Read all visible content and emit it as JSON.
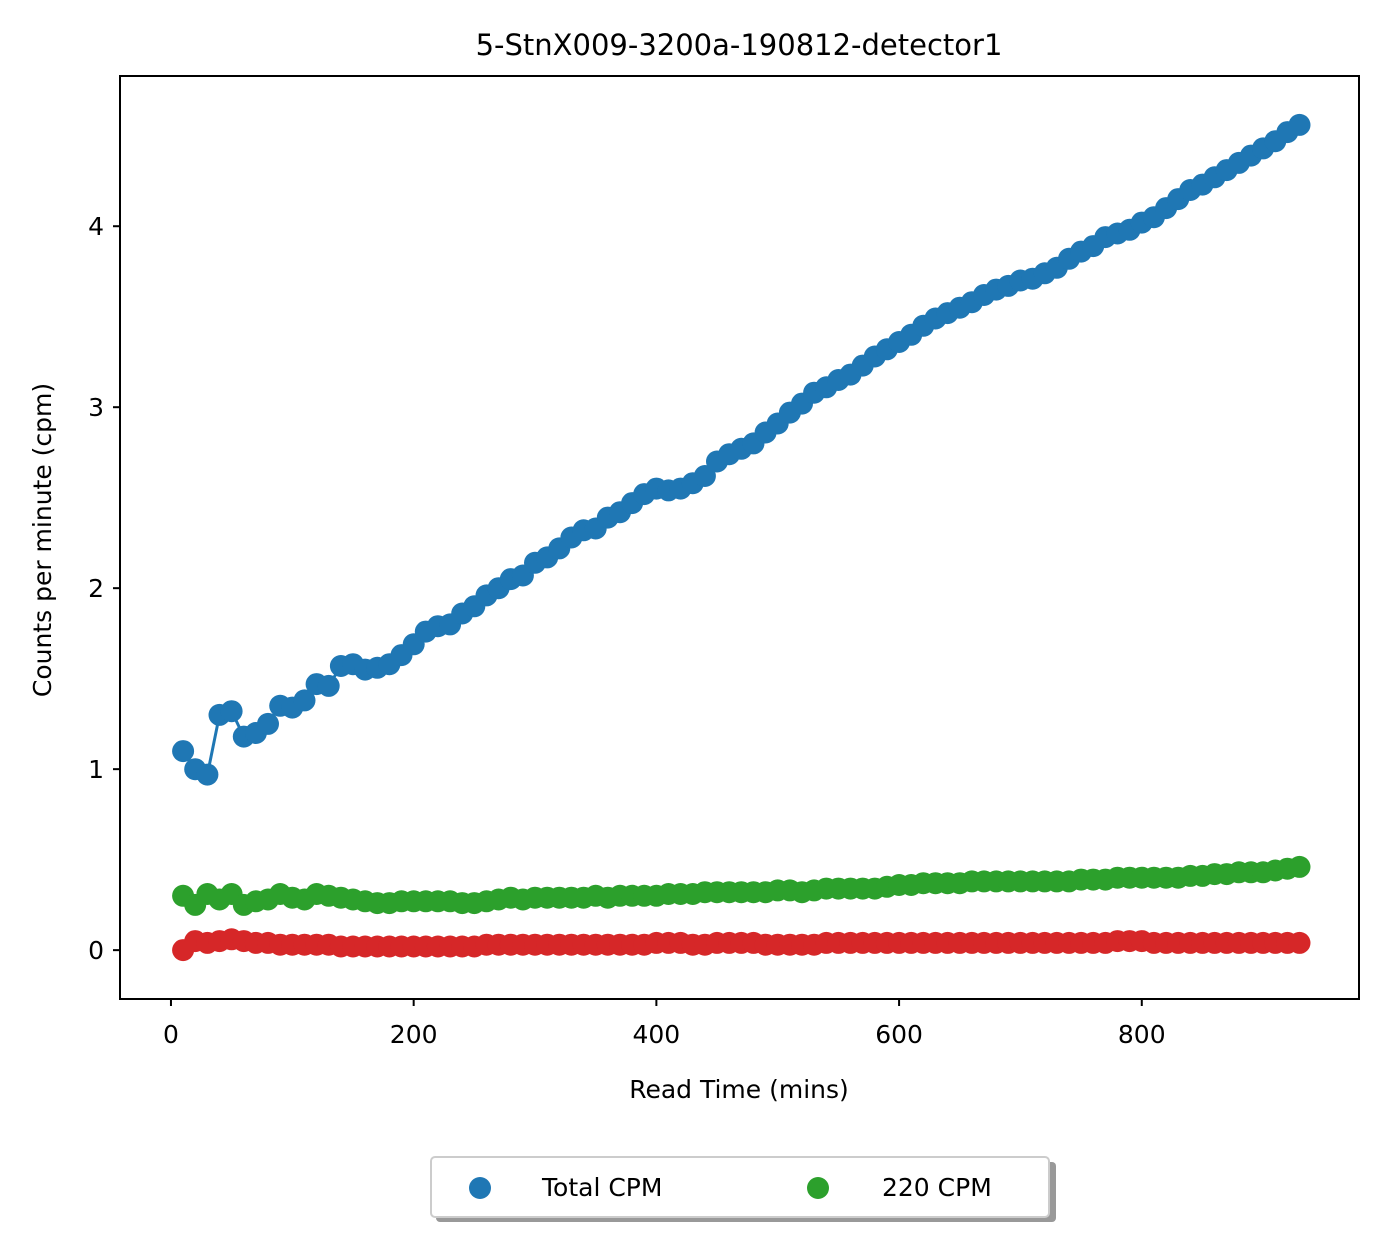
{
  "chart_data": {
    "type": "line",
    "title": "5-StnX009-3200a-190812-detector1",
    "xlabel": "Read Time (mins)",
    "ylabel": "Counts per minute (cpm)",
    "xlim": [
      -42,
      979
    ],
    "ylim": [
      -0.27,
      4.83
    ],
    "xticks": [
      0,
      200,
      400,
      600,
      800
    ],
    "yticks": [
      0,
      1,
      2,
      3,
      4
    ],
    "grid": false,
    "legend": {
      "placement": "bottom-center, below plot",
      "entries": [
        "Total CPM",
        "220 CPM"
      ]
    },
    "x": [
      10,
      20,
      30,
      40,
      50,
      60,
      70,
      80,
      90,
      100,
      110,
      120,
      130,
      140,
      150,
      160,
      170,
      180,
      190,
      200,
      210,
      220,
      230,
      240,
      250,
      260,
      270,
      280,
      290,
      300,
      310,
      320,
      330,
      340,
      350,
      360,
      370,
      380,
      390,
      400,
      410,
      420,
      430,
      440,
      450,
      460,
      470,
      480,
      490,
      500,
      510,
      520,
      530,
      540,
      550,
      560,
      570,
      580,
      590,
      600,
      610,
      620,
      630,
      640,
      650,
      660,
      670,
      680,
      690,
      700,
      710,
      720,
      730,
      740,
      750,
      760,
      770,
      780,
      790,
      800,
      810,
      820,
      830,
      840,
      850,
      860,
      870,
      880,
      890,
      900,
      910,
      920,
      930
    ],
    "series": [
      {
        "name": "Total CPM",
        "color": "#1f77b4",
        "style": "line-with-markers",
        "values": [
          1.1,
          1.0,
          0.97,
          1.3,
          1.32,
          1.18,
          1.2,
          1.25,
          1.35,
          1.34,
          1.38,
          1.47,
          1.46,
          1.57,
          1.58,
          1.55,
          1.56,
          1.58,
          1.63,
          1.69,
          1.76,
          1.79,
          1.8,
          1.86,
          1.9,
          1.96,
          2.0,
          2.05,
          2.07,
          2.14,
          2.17,
          2.22,
          2.28,
          2.32,
          2.33,
          2.39,
          2.42,
          2.47,
          2.52,
          2.55,
          2.54,
          2.55,
          2.58,
          2.62,
          2.7,
          2.74,
          2.77,
          2.8,
          2.86,
          2.91,
          2.97,
          3.02,
          3.08,
          3.11,
          3.15,
          3.18,
          3.23,
          3.28,
          3.32,
          3.36,
          3.4,
          3.45,
          3.49,
          3.52,
          3.55,
          3.58,
          3.62,
          3.65,
          3.67,
          3.7,
          3.71,
          3.74,
          3.77,
          3.82,
          3.86,
          3.89,
          3.94,
          3.96,
          3.98,
          4.02,
          4.05,
          4.1,
          4.15,
          4.2,
          4.23,
          4.27,
          4.31,
          4.35,
          4.39,
          4.43,
          4.47,
          4.52,
          4.56
        ]
      },
      {
        "name": "220 CPM",
        "color": "#2ca02c",
        "style": "line-with-markers",
        "values": [
          0.3,
          0.25,
          0.31,
          0.28,
          0.31,
          0.25,
          0.27,
          0.28,
          0.31,
          0.29,
          0.28,
          0.31,
          0.3,
          0.29,
          0.28,
          0.27,
          0.26,
          0.26,
          0.27,
          0.27,
          0.27,
          0.27,
          0.27,
          0.26,
          0.26,
          0.27,
          0.28,
          0.29,
          0.28,
          0.29,
          0.29,
          0.29,
          0.29,
          0.29,
          0.3,
          0.29,
          0.3,
          0.3,
          0.3,
          0.3,
          0.31,
          0.31,
          0.31,
          0.32,
          0.32,
          0.32,
          0.32,
          0.32,
          0.32,
          0.33,
          0.33,
          0.32,
          0.33,
          0.34,
          0.34,
          0.34,
          0.34,
          0.34,
          0.35,
          0.36,
          0.36,
          0.37,
          0.37,
          0.37,
          0.37,
          0.38,
          0.38,
          0.38,
          0.38,
          0.38,
          0.38,
          0.38,
          0.38,
          0.38,
          0.39,
          0.39,
          0.39,
          0.4,
          0.4,
          0.4,
          0.4,
          0.4,
          0.4,
          0.41,
          0.41,
          0.42,
          0.42,
          0.43,
          0.43,
          0.43,
          0.44,
          0.45,
          0.46
        ]
      },
      {
        "color": "#d62728",
        "style": "line-with-markers",
        "values": [
          0.0,
          0.05,
          0.04,
          0.05,
          0.06,
          0.05,
          0.04,
          0.04,
          0.03,
          0.03,
          0.03,
          0.03,
          0.03,
          0.02,
          0.02,
          0.02,
          0.02,
          0.02,
          0.02,
          0.02,
          0.02,
          0.02,
          0.02,
          0.02,
          0.02,
          0.03,
          0.03,
          0.03,
          0.03,
          0.03,
          0.03,
          0.03,
          0.03,
          0.03,
          0.03,
          0.03,
          0.03,
          0.03,
          0.03,
          0.04,
          0.04,
          0.04,
          0.03,
          0.03,
          0.04,
          0.04,
          0.04,
          0.04,
          0.03,
          0.03,
          0.03,
          0.03,
          0.03,
          0.04,
          0.04,
          0.04,
          0.04,
          0.04,
          0.04,
          0.04,
          0.04,
          0.04,
          0.04,
          0.04,
          0.04,
          0.04,
          0.04,
          0.04,
          0.04,
          0.04,
          0.04,
          0.04,
          0.04,
          0.04,
          0.04,
          0.04,
          0.04,
          0.05,
          0.05,
          0.05,
          0.04,
          0.04,
          0.04,
          0.04,
          0.04,
          0.04,
          0.04,
          0.04,
          0.04,
          0.04,
          0.04,
          0.04,
          0.04
        ]
      }
    ]
  }
}
